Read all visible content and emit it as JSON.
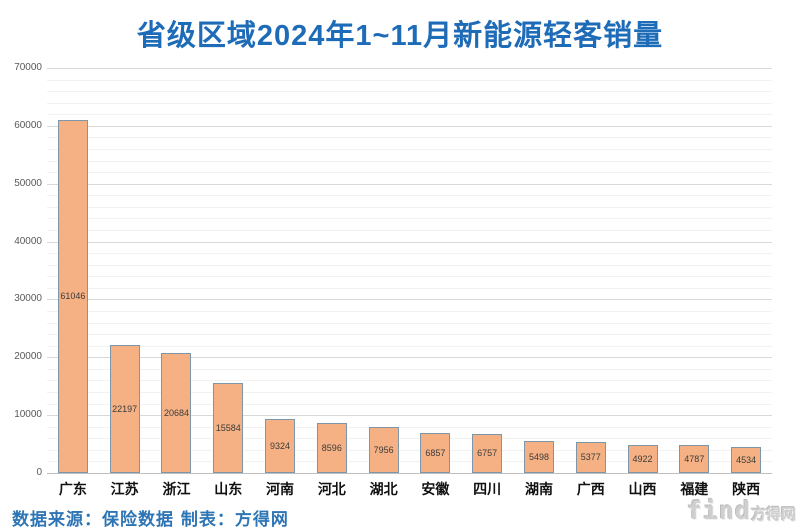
{
  "title": "省级区域2024年1~11月新能源轻客销量",
  "colors": {
    "title": "#1e6bb8",
    "bar_fill": "#f5b183",
    "bar_border": "#7e97a8",
    "major_grid": "#d9d9d9",
    "minor_grid": "#f2f2f2",
    "axis_line": "#bfbfbf",
    "source_text": "#2e75b6",
    "watermark": "#cfcfcf"
  },
  "chart_data": {
    "type": "bar",
    "title": "省级区域2024年1~11月新能源轻客销量",
    "categories": [
      "广东",
      "江苏",
      "浙江",
      "山东",
      "河南",
      "河北",
      "湖北",
      "安徽",
      "四川",
      "湖南",
      "广西",
      "山西",
      "福建",
      "陕西"
    ],
    "values": [
      61046,
      22197,
      20684,
      15584,
      9324,
      8596,
      7956,
      6857,
      6757,
      5498,
      5377,
      4922,
      4787,
      4534
    ],
    "xlabel": "",
    "ylabel": "",
    "ylim": [
      0,
      70000
    ],
    "ytick_interval": 10000,
    "minor_tick_interval": 2000,
    "ytick_labels": [
      "0",
      "10000",
      "20000",
      "30000",
      "40000",
      "50000",
      "60000",
      "70000"
    ],
    "grid": true,
    "legend": false,
    "value_labels": "centered-inside-bars"
  },
  "footer": {
    "source_text": "数据来源：保险数据 制表：方得网"
  },
  "watermark": {
    "brand": "find",
    "brand_cn": "方得网"
  }
}
